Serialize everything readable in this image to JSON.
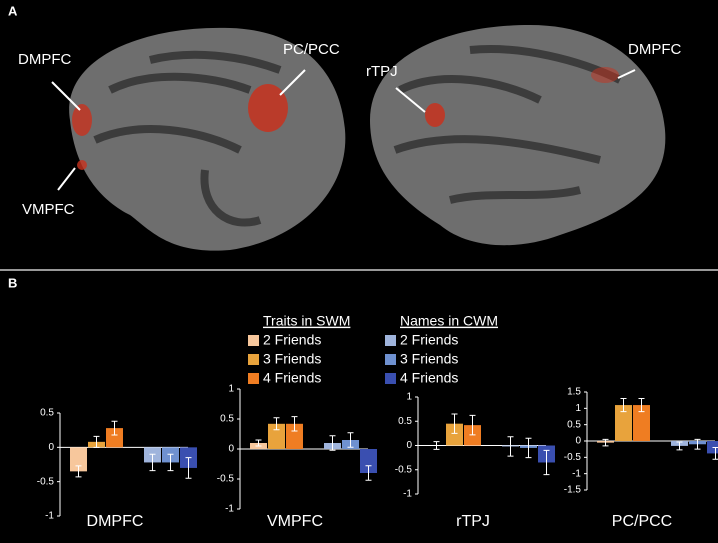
{
  "panels": {
    "a": "A",
    "b": "B"
  },
  "annotations": {
    "dmpfc_left": "DMPFC",
    "pc_pcc": "PC/PCC",
    "vmpfc": "VMPFC",
    "rtpj": "rTPJ",
    "dmpfc_right": "DMPFC"
  },
  "legend": {
    "groups": [
      {
        "title": "Traits in SWM",
        "items": [
          {
            "name": "2 Friends",
            "color": "#f7c79c"
          },
          {
            "name": "3 Friends",
            "color": "#e8a33c"
          },
          {
            "name": "4 Friends",
            "color": "#ef7d22"
          }
        ]
      },
      {
        "title": "Names in CWM",
        "items": [
          {
            "name": "2 Friends",
            "color": "#9fb4dc"
          },
          {
            "name": "3 Friends",
            "color": "#6f91d0"
          },
          {
            "name": "4 Friends",
            "color": "#3a4fb0"
          }
        ]
      }
    ]
  },
  "chart_data": [
    {
      "type": "bar",
      "title": "DMPFC",
      "values": [
        -0.35,
        0.08,
        0.28,
        -0.22,
        -0.22,
        -0.3
      ],
      "errors": [
        0.08,
        0.08,
        0.1,
        0.12,
        0.12,
        0.15
      ],
      "ylim": [
        -1,
        0.5
      ],
      "yticks": [
        0.5,
        0,
        -0.5,
        -1
      ]
    },
    {
      "type": "bar",
      "title": "VMPFC",
      "values": [
        0.1,
        0.42,
        0.42,
        0.1,
        0.15,
        -0.4
      ],
      "errors": [
        0.05,
        0.1,
        0.12,
        0.12,
        0.12,
        0.12
      ],
      "ylim": [
        -1,
        1
      ],
      "yticks": [
        1,
        0.5,
        0,
        -0.5,
        -1
      ]
    },
    {
      "type": "bar",
      "title": "rTPJ",
      "values": [
        0,
        0.45,
        0.42,
        -0.02,
        -0.05,
        -0.35
      ],
      "errors": [
        0.08,
        0.2,
        0.2,
        0.2,
        0.2,
        0.25
      ],
      "ylim": [
        -1,
        1
      ],
      "yticks": [
        1,
        0.5,
        0,
        -0.5,
        -1
      ]
    },
    {
      "type": "bar",
      "title": "PC/PCC",
      "values": [
        -0.05,
        1.1,
        1.1,
        -0.15,
        -0.1,
        -0.38
      ],
      "errors": [
        0.1,
        0.2,
        0.2,
        0.12,
        0.15,
        0.18
      ],
      "ylim": [
        -1.5,
        1.5
      ],
      "yticks": [
        1.5,
        1,
        0.5,
        0,
        -0.5,
        -1,
        -1.5
      ]
    }
  ]
}
